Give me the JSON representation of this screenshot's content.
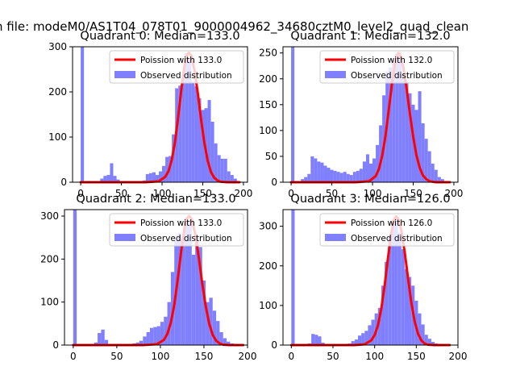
{
  "figure_title": "n file: modeM0/AS1T04_078T01_9000004962_34680cztM0_level2_quad_clean",
  "colors": {
    "hist": "#8080ff",
    "poisson": "#ff0000",
    "axis": "#000000"
  },
  "chart_data": [
    {
      "type": "bar",
      "title": "Quadrant 0: Median=133.0",
      "xlim": [
        -10,
        205
      ],
      "ylim": [
        0,
        300
      ],
      "xticks": [
        0,
        50,
        100,
        150,
        200
      ],
      "yticks": [
        0,
        100,
        200,
        300
      ],
      "legend": {
        "position": "top-right",
        "poisson_label": "Poission with 133.0",
        "observed_label": "Observed distribution"
      },
      "median": 133.0,
      "poisson_peak": 287,
      "bin_width": 4,
      "bins_start": [
        0,
        4,
        8,
        12,
        16,
        20,
        24,
        28,
        32,
        36,
        40,
        44,
        48,
        52,
        56,
        60,
        64,
        68,
        72,
        76,
        80,
        84,
        88,
        92,
        96,
        100,
        104,
        108,
        112,
        116,
        120,
        124,
        128,
        132,
        136,
        140,
        144,
        148,
        152,
        156,
        160,
        164,
        168,
        172,
        176,
        180,
        184,
        188,
        192
      ],
      "counts": [
        300,
        0,
        0,
        0,
        0,
        2,
        8,
        14,
        16,
        42,
        14,
        6,
        2,
        2,
        2,
        2,
        2,
        2,
        2,
        4,
        18,
        20,
        22,
        16,
        24,
        36,
        56,
        58,
        106,
        208,
        214,
        236,
        286,
        274,
        222,
        212,
        186,
        160,
        164,
        182,
        134,
        86,
        60,
        52,
        52,
        24,
        16,
        8,
        0
      ],
      "poisson_x": [
        0,
        40,
        80,
        96,
        104,
        108,
        112,
        116,
        120,
        124,
        128,
        130,
        133,
        136,
        140,
        144,
        148,
        152,
        156,
        160,
        164,
        168,
        172,
        180,
        195
      ],
      "poisson_y": [
        0,
        0,
        0,
        2,
        12,
        25,
        50,
        90,
        148,
        210,
        264,
        280,
        287,
        280,
        246,
        196,
        138,
        87,
        48,
        23,
        10,
        4,
        1,
        0,
        0
      ]
    },
    {
      "type": "bar",
      "title": "Quadrant 1: Median=132.0",
      "xlim": [
        -10,
        205
      ],
      "ylim": [
        0,
        262
      ],
      "xticks": [
        0,
        50,
        100,
        150,
        200
      ],
      "yticks": [
        0,
        50,
        100,
        150,
        200,
        250
      ],
      "legend": {
        "position": "top-right",
        "poisson_label": "Poission with 132.0",
        "observed_label": "Observed distribution"
      },
      "median": 132.0,
      "poisson_peak": 250,
      "bin_width": 4,
      "bins_start": [
        0,
        4,
        8,
        12,
        16,
        20,
        24,
        28,
        32,
        36,
        40,
        44,
        48,
        52,
        56,
        60,
        64,
        68,
        72,
        76,
        80,
        84,
        88,
        92,
        96,
        100,
        104,
        108,
        112,
        116,
        120,
        124,
        128,
        132,
        136,
        140,
        144,
        148,
        152,
        156,
        160,
        164,
        168,
        172,
        176,
        180,
        184,
        188,
        192
      ],
      "counts": [
        262,
        0,
        0,
        6,
        10,
        16,
        50,
        46,
        40,
        38,
        32,
        28,
        24,
        22,
        20,
        18,
        20,
        16,
        14,
        20,
        22,
        26,
        40,
        54,
        36,
        46,
        72,
        110,
        168,
        214,
        222,
        236,
        248,
        244,
        208,
        194,
        172,
        150,
        140,
        176,
        114,
        84,
        60,
        36,
        24,
        10,
        6,
        2,
        0
      ],
      "poisson_x": [
        0,
        40,
        80,
        96,
        104,
        108,
        112,
        116,
        120,
        124,
        128,
        130,
        132,
        134,
        138,
        142,
        146,
        150,
        154,
        158,
        162,
        166,
        170,
        178,
        195
      ],
      "poisson_y": [
        0,
        0,
        0,
        2,
        12,
        26,
        52,
        90,
        140,
        192,
        232,
        246,
        250,
        246,
        222,
        180,
        132,
        88,
        52,
        28,
        13,
        6,
        2,
        0,
        0
      ]
    },
    {
      "type": "bar",
      "title": "Quadrant 2: Median=133.0",
      "xlim": [
        -10,
        200
      ],
      "ylim": [
        0,
        315
      ],
      "xticks": [
        0,
        50,
        100,
        150,
        200
      ],
      "yticks": [
        0,
        100,
        200,
        300
      ],
      "legend": {
        "position": "top-right",
        "poisson_label": "Poission with 133.0",
        "observed_label": "Observed distribution"
      },
      "median": 133.0,
      "poisson_peak": 300,
      "bin_width": 4,
      "bins_start": [
        0,
        4,
        8,
        12,
        16,
        20,
        24,
        28,
        32,
        36,
        40,
        44,
        48,
        52,
        56,
        60,
        64,
        68,
        72,
        76,
        80,
        84,
        88,
        92,
        96,
        100,
        104,
        108,
        112,
        116,
        120,
        124,
        128,
        132,
        136,
        140,
        144,
        148,
        152,
        156,
        160,
        164,
        168,
        172,
        176,
        180,
        184,
        188,
        192
      ],
      "counts": [
        315,
        0,
        0,
        0,
        0,
        2,
        6,
        28,
        36,
        12,
        2,
        2,
        2,
        2,
        2,
        2,
        2,
        4,
        6,
        10,
        20,
        30,
        40,
        42,
        44,
        54,
        66,
        100,
        170,
        244,
        260,
        248,
        296,
        290,
        210,
        250,
        228,
        150,
        100,
        110,
        80,
        56,
        30,
        16,
        8,
        4,
        2,
        0,
        0
      ],
      "poisson_x": [
        0,
        40,
        80,
        96,
        104,
        108,
        112,
        116,
        120,
        124,
        128,
        130,
        133,
        136,
        140,
        144,
        148,
        152,
        156,
        160,
        164,
        168,
        172,
        180,
        195
      ],
      "poisson_y": [
        0,
        0,
        0,
        2,
        12,
        26,
        52,
        94,
        154,
        220,
        276,
        293,
        300,
        293,
        258,
        205,
        144,
        91,
        50,
        24,
        10,
        4,
        1,
        0,
        0
      ]
    },
    {
      "type": "bar",
      "title": "Quadrant 3: Median=126.0",
      "xlim": [
        -10,
        200
      ],
      "ylim": [
        0,
        342
      ],
      "xticks": [
        0,
        50,
        100,
        150,
        200
      ],
      "yticks": [
        0,
        100,
        200,
        300
      ],
      "legend": {
        "position": "top-right",
        "poisson_label": "Poission with 126.0",
        "observed_label": "Observed distribution"
      },
      "median": 126.0,
      "poisson_peak": 325,
      "bin_width": 4,
      "bins_start": [
        0,
        4,
        8,
        12,
        16,
        20,
        24,
        28,
        32,
        36,
        40,
        44,
        48,
        52,
        56,
        60,
        64,
        68,
        72,
        76,
        80,
        84,
        88,
        92,
        96,
        100,
        104,
        108,
        112,
        116,
        120,
        124,
        128,
        132,
        136,
        140,
        144,
        148,
        152,
        156,
        160,
        164,
        168,
        172,
        176,
        180,
        184,
        188,
        192
      ],
      "counts": [
        342,
        0,
        0,
        0,
        0,
        4,
        28,
        26,
        22,
        6,
        2,
        2,
        2,
        2,
        2,
        2,
        2,
        4,
        10,
        14,
        24,
        30,
        36,
        50,
        64,
        80,
        94,
        150,
        210,
        276,
        310,
        320,
        284,
        242,
        192,
        172,
        150,
        112,
        80,
        52,
        26,
        16,
        8,
        4,
        2,
        0,
        0,
        0,
        0
      ],
      "poisson_x": [
        0,
        40,
        76,
        88,
        96,
        100,
        104,
        108,
        112,
        116,
        120,
        123,
        126,
        129,
        132,
        136,
        140,
        144,
        148,
        152,
        156,
        160,
        164,
        172,
        190
      ],
      "poisson_y": [
        0,
        0,
        0,
        2,
        12,
        25,
        50,
        92,
        150,
        220,
        282,
        316,
        325,
        316,
        290,
        236,
        170,
        108,
        60,
        29,
        12,
        4,
        1,
        0,
        0
      ]
    }
  ]
}
